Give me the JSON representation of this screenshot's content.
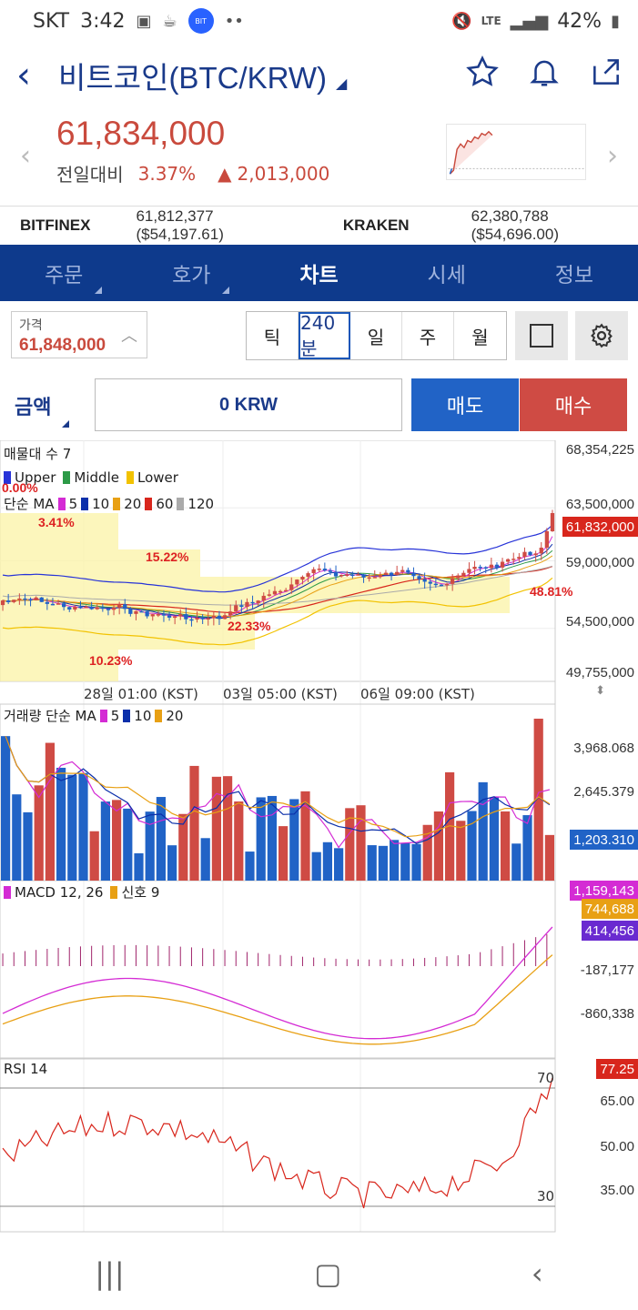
{
  "status": {
    "carrier": "SKT",
    "time": "3:42",
    "network": "LTE",
    "battery": "42%",
    "app_badge": "BIT"
  },
  "header": {
    "title": "비트코인(BTC/KRW)"
  },
  "ticker": {
    "price": "61,834,000",
    "change_label": "전일대비",
    "change_pct": "3.37%",
    "change_amt": "2,013,000"
  },
  "exchanges": [
    {
      "name": "BITFINEX",
      "value": "61,812,377 ($54,197.61)"
    },
    {
      "name": "KRAKEN",
      "value": "62,380,788 ($54,696.00)"
    }
  ],
  "tabs": [
    "주문",
    "호가",
    "차트",
    "시세",
    "정보"
  ],
  "controls": {
    "price_label": "가격",
    "price_value": "61,848,000",
    "periods": [
      "틱",
      "240분",
      "일",
      "주",
      "월"
    ],
    "active_period": "240분",
    "amount_label": "금액",
    "amount_value": "0 KRW",
    "sell": "매도",
    "buy": "매수"
  },
  "chart": {
    "main_legend1": "매물대 수 7",
    "main_legend2": [
      "Upper",
      "Middle",
      "Lower"
    ],
    "main_legend3_prefix": "단순 MA",
    "main_ma": [
      "5",
      "10",
      "20",
      "60",
      "120"
    ],
    "price_axis": [
      "68,354,225",
      "63,500,000",
      "59,000,000",
      "54,500,000",
      "49,755,000"
    ],
    "current_price_tag": "61,832,000",
    "overlay_pcts": [
      "0.00%",
      "3.41%",
      "15.22%",
      "22.33%",
      "10.23%",
      "48.81%"
    ],
    "time_labels": [
      "28일 01:00 (KST)",
      "03일 05:00 (KST)",
      "06일 09:00 (KST)"
    ],
    "vol_legend_prefix": "거래량 단순 MA",
    "vol_ma": [
      "5",
      "10",
      "20"
    ],
    "vol_axis": [
      "3,968.068",
      "2,645.379"
    ],
    "vol_tag": "1,203.310",
    "macd_legend": "MACD 12, 26",
    "macd_signal": "신호 9",
    "macd_tags": [
      "1,159,143",
      "744,688",
      "414,456"
    ],
    "macd_axis": [
      "-187,177",
      "-860,338"
    ],
    "rsi_legend": "RSI 14",
    "rsi_tag": "77.25",
    "rsi_axis": [
      "65.00",
      "50.00",
      "35.00"
    ],
    "rsi_levels": [
      "70",
      "30"
    ]
  },
  "colors": {
    "up": "#cf4b44",
    "down": "#2163c6",
    "brand": "#0e3a8c"
  }
}
